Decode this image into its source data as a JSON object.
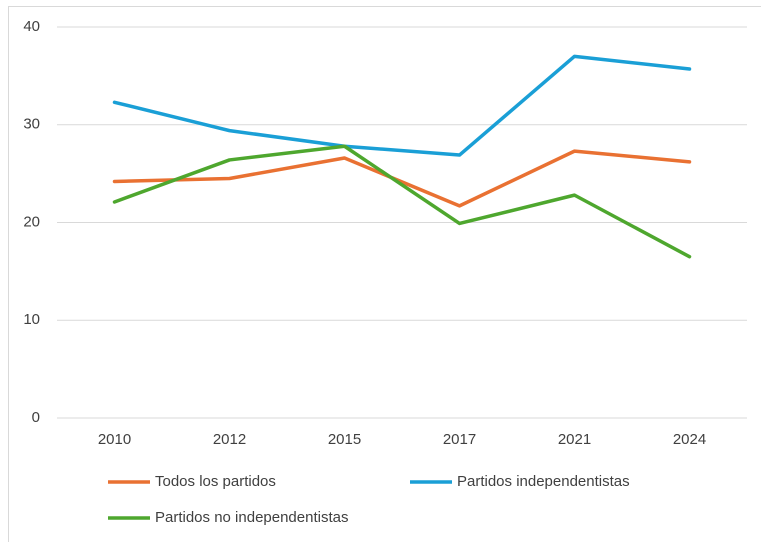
{
  "chart_data": {
    "type": "line",
    "categories": [
      "2010",
      "2012",
      "2015",
      "2017",
      "2021",
      "2024"
    ],
    "series": [
      {
        "name": "Todos los partidos",
        "color": "#e97132",
        "values": [
          24.2,
          24.5,
          26.6,
          21.7,
          27.3,
          26.2
        ]
      },
      {
        "name": "Partidos independentistas",
        "color": "#1a9fd6",
        "values": [
          32.3,
          29.4,
          27.8,
          26.9,
          37.0,
          35.7
        ]
      },
      {
        "name": "Partidos no independentistas",
        "color": "#4ea72e",
        "values": [
          22.1,
          26.4,
          27.8,
          19.9,
          22.8,
          16.5
        ]
      }
    ],
    "ylim": [
      0,
      40
    ],
    "yticks": [
      0,
      10,
      20,
      30,
      40
    ],
    "grid": true,
    "legend": "bottom"
  }
}
